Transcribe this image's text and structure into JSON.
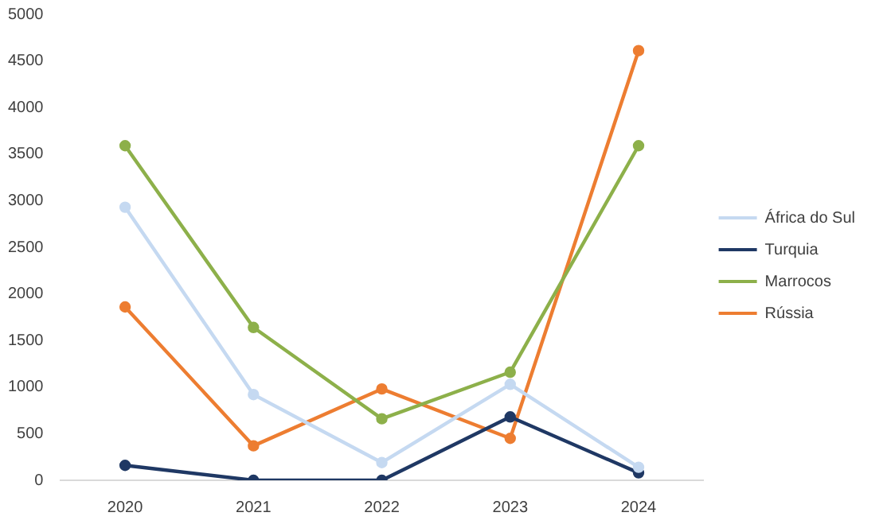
{
  "chart_data": {
    "type": "line",
    "categories": [
      "2020",
      "2021",
      "2022",
      "2023",
      "2024"
    ],
    "series": [
      {
        "name": "África do Sul",
        "color": "#c5d9f1",
        "values": [
          2930,
          920,
          190,
          1030,
          140
        ]
      },
      {
        "name": "Turquia",
        "color": "#1f3864",
        "values": [
          160,
          0,
          0,
          680,
          80
        ]
      },
      {
        "name": "Marrocos",
        "color": "#8db04a",
        "values": [
          3590,
          1640,
          660,
          1160,
          3590
        ]
      },
      {
        "name": "Rússia",
        "color": "#ed7d31",
        "values": [
          1860,
          370,
          980,
          450,
          4610
        ]
      }
    ],
    "ylim": [
      0,
      5000
    ],
    "yticks": [
      0,
      500,
      1000,
      1500,
      2000,
      2500,
      3000,
      3500,
      4000,
      4500,
      5000
    ],
    "grid": false,
    "legend": "right",
    "marker": "circle"
  }
}
